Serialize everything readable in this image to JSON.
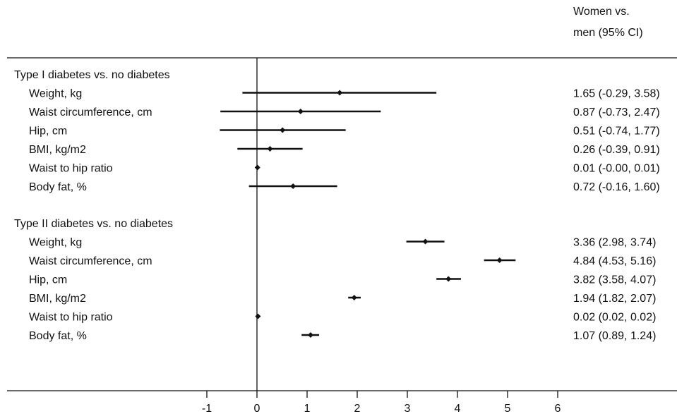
{
  "chart_data": {
    "type": "forest",
    "title": "",
    "xlabel": "",
    "ylabel": "",
    "column_header": [
      "Women vs.",
      "men (95% CI)"
    ],
    "xlim": [
      -1.4,
      6.8
    ],
    "xticks": [
      -1,
      0,
      1,
      2,
      3,
      4,
      5,
      6
    ],
    "reference_line": 0,
    "groups": [
      {
        "name": "Type I diabetes vs. no diabetes",
        "rows": [
          {
            "label": "Weight, kg",
            "est": 1.65,
            "lo": -0.29,
            "hi": 3.58,
            "text": "1.65 (-0.29, 3.58)"
          },
          {
            "label": "Waist circumference, cm",
            "est": 0.87,
            "lo": -0.73,
            "hi": 2.47,
            "text": "0.87 (-0.73, 2.47)"
          },
          {
            "label": "Hip, cm",
            "est": 0.51,
            "lo": -0.74,
            "hi": 1.77,
            "text": "0.51 (-0.74, 1.77)"
          },
          {
            "label": "BMI, kg/m2",
            "est": 0.26,
            "lo": -0.39,
            "hi": 0.91,
            "text": "0.26 (-0.39, 0.91)"
          },
          {
            "label": "Waist to hip ratio",
            "est": 0.01,
            "lo": -0.0,
            "hi": 0.01,
            "text": "0.01 (-0.00, 0.01)"
          },
          {
            "label": "Body fat, %",
            "est": 0.72,
            "lo": -0.16,
            "hi": 1.6,
            "text": "0.72 (-0.16, 1.60)"
          }
        ]
      },
      {
        "name": "Type II diabetes vs. no diabetes",
        "rows": [
          {
            "label": "Weight, kg",
            "est": 3.36,
            "lo": 2.98,
            "hi": 3.74,
            "text": "3.36 (2.98, 3.74)"
          },
          {
            "label": "Waist circumference, cm",
            "est": 4.84,
            "lo": 4.53,
            "hi": 5.16,
            "text": "4.84 (4.53, 5.16)"
          },
          {
            "label": "Hip, cm",
            "est": 3.82,
            "lo": 3.58,
            "hi": 4.07,
            "text": "3.82 (3.58, 4.07)"
          },
          {
            "label": "BMI, kg/m2",
            "est": 1.94,
            "lo": 1.82,
            "hi": 2.07,
            "text": "1.94 (1.82, 2.07)"
          },
          {
            "label": "Waist to hip ratio",
            "est": 0.02,
            "lo": 0.02,
            "hi": 0.02,
            "text": "0.02 (0.02, 0.02)"
          },
          {
            "label": "Body fat, %",
            "est": 1.07,
            "lo": 0.89,
            "hi": 1.24,
            "text": "1.07 (0.89, 1.24)"
          }
        ]
      }
    ],
    "colors": {
      "ink": "#111111",
      "background": "#ffffff"
    }
  }
}
